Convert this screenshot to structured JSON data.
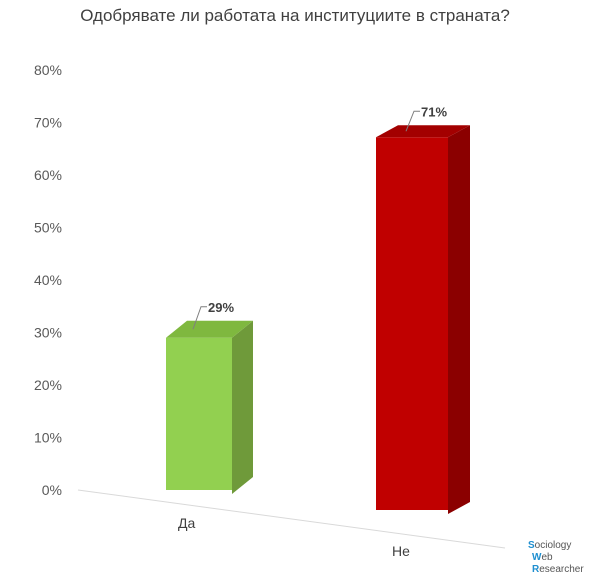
{
  "chart_data": {
    "type": "bar",
    "title": "Одобрявате ли работата на институциите в страната?",
    "categories": [
      "Да",
      "Не"
    ],
    "values": [
      29,
      71
    ],
    "data_labels": [
      "29%",
      "71%"
    ],
    "ylim": [
      0,
      80
    ],
    "yticks": [
      "0%",
      "10%",
      "20%",
      "30%",
      "40%",
      "50%",
      "60%",
      "70%",
      "80%"
    ],
    "bar_colors": [
      "#92d050",
      "#c00000"
    ],
    "bar_side_colors": [
      "#6f9a3a",
      "#8b0000"
    ],
    "bar_top_colors": [
      "#7fb83f",
      "#a30000"
    ],
    "style": "3d-column",
    "grid": false,
    "legend": "none"
  },
  "logo": {
    "lines": [
      {
        "cap": "S",
        "rest": "ociology"
      },
      {
        "cap": "W",
        "rest": "eb"
      },
      {
        "cap": "R",
        "rest": "esearcher"
      }
    ]
  }
}
